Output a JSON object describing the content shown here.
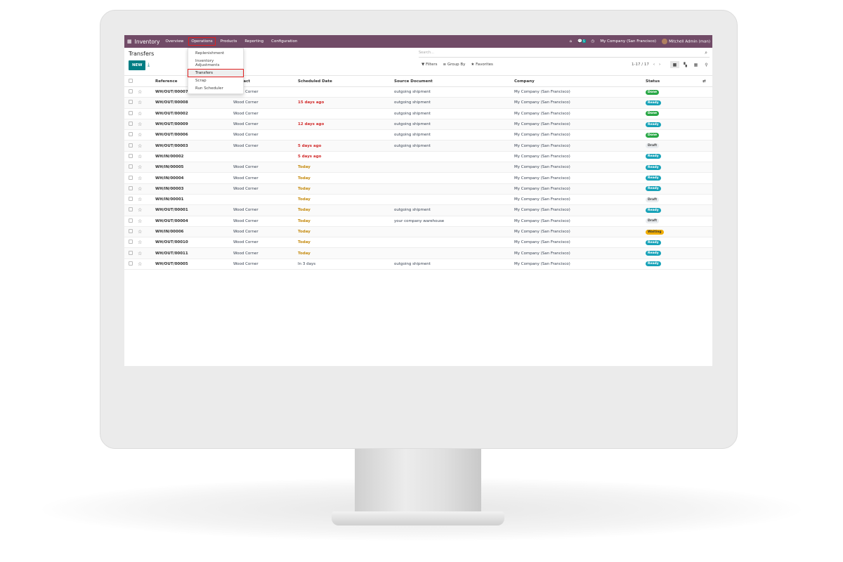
{
  "navbar": {
    "app": "Inventory",
    "menus": [
      "Overview",
      "Operations",
      "Products",
      "Reporting",
      "Configuration"
    ],
    "active_menu": "Operations",
    "messages_count": "5",
    "company": "My Company (San Francisco)",
    "user": "Mitchell Admin (man)"
  },
  "dropdown": {
    "items": [
      "Replenishment",
      "Inventory Adjustments",
      "Transfers",
      "Scrap",
      "Run Scheduler"
    ],
    "highlighted": "Transfers"
  },
  "page": {
    "title": "Transfers",
    "new_label": "NEW",
    "search_placeholder": "Search...",
    "filters": "Filters",
    "group_by": "Group By",
    "favorites": "Favorites",
    "pager": "1-17 / 17"
  },
  "table": {
    "headers": [
      "Reference",
      "Contact",
      "Scheduled Date",
      "Source Document",
      "Company",
      "Status"
    ],
    "rows": [
      [
        "WH/OUT/00007",
        "Wood Corner",
        "",
        "outgoing shipment",
        "My Company (San Francisco)",
        "Done"
      ],
      [
        "WH/OUT/00008",
        "Wood Corner",
        "15 days ago",
        "outgoing shipment",
        "My Company (San Francisco)",
        "Ready"
      ],
      [
        "WH/OUT/00002",
        "Wood Corner",
        "",
        "outgoing shipment",
        "My Company (San Francisco)",
        "Done"
      ],
      [
        "WH/OUT/00009",
        "Wood Corner",
        "12 days ago",
        "outgoing shipment",
        "My Company (San Francisco)",
        "Ready"
      ],
      [
        "WH/OUT/00006",
        "Wood Corner",
        "",
        "outgoing shipment",
        "My Company (San Francisco)",
        "Done"
      ],
      [
        "WH/OUT/00003",
        "Wood Corner",
        "5 days ago",
        "outgoing shipment",
        "My Company (San Francisco)",
        "Draft"
      ],
      [
        "WH/IN/00002",
        "",
        "5 days ago",
        "",
        "My Company (San Francisco)",
        "Ready"
      ],
      [
        "WH/IN/00005",
        "Wood Corner",
        "Today",
        "",
        "My Company (San Francisco)",
        "Ready"
      ],
      [
        "WH/IN/00004",
        "Wood Corner",
        "Today",
        "",
        "My Company (San Francisco)",
        "Ready"
      ],
      [
        "WH/IN/00003",
        "Wood Corner",
        "Today",
        "",
        "My Company (San Francisco)",
        "Ready"
      ],
      [
        "WH/IN/00001",
        "",
        "Today",
        "",
        "My Company (San Francisco)",
        "Draft"
      ],
      [
        "WH/OUT/00001",
        "Wood Corner",
        "Today",
        "outgoing shipment",
        "My Company (San Francisco)",
        "Ready"
      ],
      [
        "WH/OUT/00004",
        "Wood Corner",
        "Today",
        "your company warehouse",
        "My Company (San Francisco)",
        "Draft"
      ],
      [
        "WH/IN/00006",
        "Wood Corner",
        "Today",
        "",
        "My Company (San Francisco)",
        "Waiting"
      ],
      [
        "WH/OUT/00010",
        "Wood Corner",
        "Today",
        "",
        "My Company (San Francisco)",
        "Ready"
      ],
      [
        "WH/OUT/00011",
        "Wood Corner",
        "Today",
        "",
        "My Company (San Francisco)",
        "Ready"
      ],
      [
        "WH/OUT/00005",
        "Wood Corner",
        "In 3 days",
        "outgoing shipment",
        "My Company (San Francisco)",
        "Ready"
      ]
    ]
  },
  "colors": {
    "navbar": "#714b67",
    "primary": "#017e84",
    "done": "#28a745",
    "ready": "#17a2b8",
    "draft": "#e9ecef",
    "waiting": "#f0ad00",
    "overdue": "#d12b2b",
    "today": "#c58a0e"
  }
}
